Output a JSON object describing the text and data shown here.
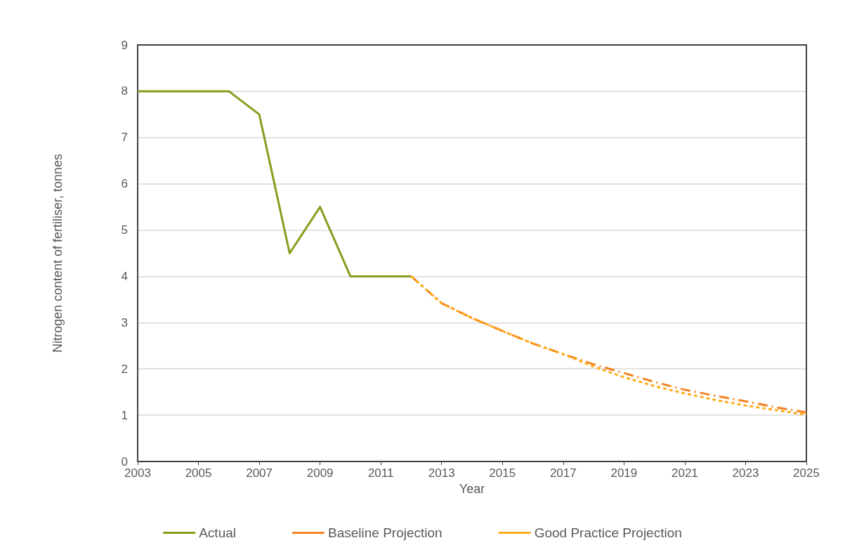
{
  "chart_data": {
    "type": "line",
    "xlabel": "Year",
    "ylabel": "Nitrogen content of fertiliser, tonnes",
    "xlim": [
      2003,
      2025
    ],
    "xticks": [
      2003,
      2005,
      2007,
      2009,
      2011,
      2013,
      2015,
      2017,
      2019,
      2021,
      2023,
      2025
    ],
    "ylim": [
      0,
      9
    ],
    "yticks": [
      0,
      1,
      2,
      3,
      4,
      5,
      6,
      7,
      8,
      9
    ],
    "grid": "y",
    "legend": "bottom",
    "marker": "none",
    "series": [
      {
        "name": "Actual",
        "color": "#8c9a1e",
        "line_style": "solid",
        "x": [
          2003,
          2004,
          2005,
          2006,
          2007,
          2008,
          2009,
          2010,
          2011,
          2012
        ],
        "values": [
          8,
          8,
          8,
          8,
          7.5,
          4.5,
          5.5,
          4,
          4,
          4
        ]
      },
      {
        "name": "Baseline Projection",
        "color": "#f5821f",
        "line_style": "dashed",
        "x": [
          2012,
          2013,
          2014,
          2015,
          2016,
          2017,
          2018,
          2019,
          2020,
          2021,
          2022,
          2023,
          2024,
          2025
        ],
        "values": [
          4,
          3.42,
          3.1,
          2.82,
          2.55,
          2.32,
          2.1,
          1.91,
          1.72,
          1.55,
          1.42,
          1.3,
          1.17,
          1.06
        ]
      },
      {
        "name": "Good Practice Projection",
        "color": "#ffac1c",
        "line_style": "dotted",
        "x": [
          2012,
          2013,
          2014,
          2015,
          2016,
          2017,
          2018,
          2019,
          2020,
          2021,
          2022,
          2023,
          2024,
          2025
        ],
        "values": [
          4,
          3.42,
          3.1,
          2.82,
          2.55,
          2.32,
          2.05,
          1.82,
          1.63,
          1.47,
          1.33,
          1.21,
          1.11,
          1.01
        ]
      }
    ]
  }
}
